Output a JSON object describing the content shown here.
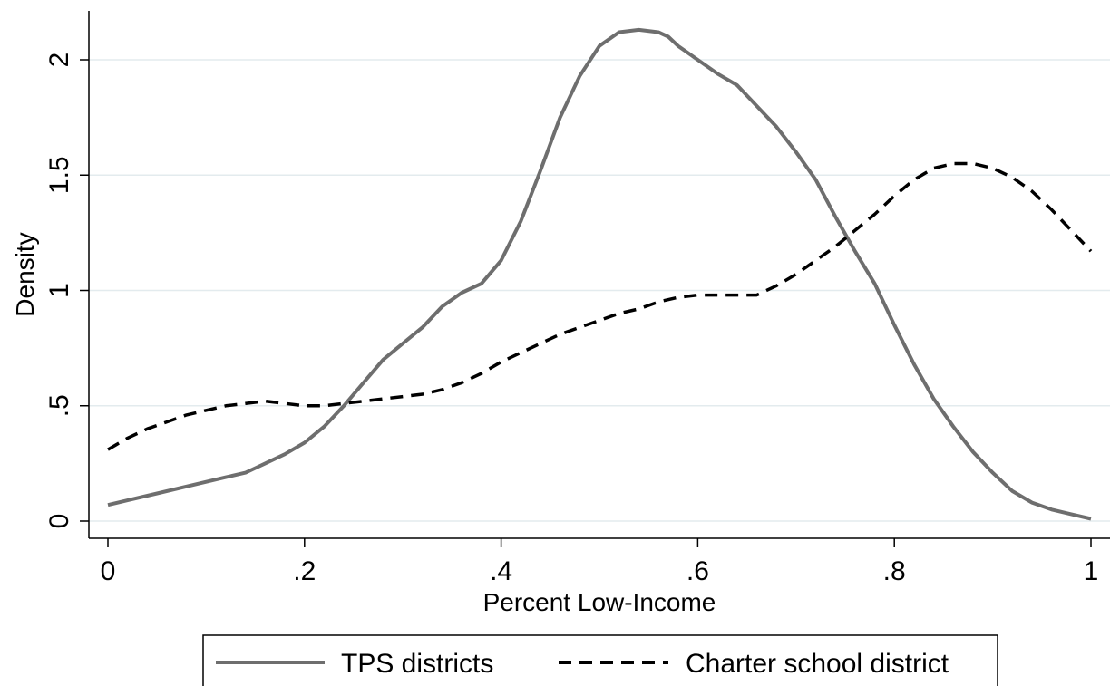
{
  "chart_data": {
    "type": "line",
    "xlabel": "Percent Low-Income",
    "ylabel": "Density",
    "xlim": [
      0,
      1
    ],
    "ylim": [
      0,
      2.2
    ],
    "x_ticks": [
      {
        "value": 0,
        "label": "0"
      },
      {
        "value": 0.2,
        "label": ".2"
      },
      {
        "value": 0.4,
        "label": ".4"
      },
      {
        "value": 0.6,
        "label": ".6"
      },
      {
        "value": 0.8,
        "label": ".8"
      },
      {
        "value": 1,
        "label": "1"
      }
    ],
    "y_ticks": [
      {
        "value": 0,
        "label": "0"
      },
      {
        "value": 0.5,
        "label": ".5"
      },
      {
        "value": 1,
        "label": "1"
      },
      {
        "value": 1.5,
        "label": "1.5"
      },
      {
        "value": 2,
        "label": "2"
      }
    ],
    "grid": "horizontal",
    "legend_position": "bottom",
    "series": [
      {
        "name": "TPS districts",
        "color": "#6e6e6e",
        "style": "solid",
        "x": [
          0,
          0.02,
          0.05,
          0.08,
          0.1,
          0.12,
          0.14,
          0.15,
          0.16,
          0.18,
          0.2,
          0.22,
          0.24,
          0.26,
          0.28,
          0.3,
          0.32,
          0.34,
          0.36,
          0.38,
          0.4,
          0.42,
          0.44,
          0.46,
          0.48,
          0.5,
          0.52,
          0.54,
          0.56,
          0.57,
          0.58,
          0.6,
          0.62,
          0.64,
          0.66,
          0.68,
          0.7,
          0.72,
          0.74,
          0.76,
          0.78,
          0.8,
          0.82,
          0.84,
          0.86,
          0.88,
          0.9,
          0.92,
          0.94,
          0.96,
          0.98,
          1.0
        ],
        "y": [
          0.07,
          0.09,
          0.12,
          0.15,
          0.17,
          0.19,
          0.21,
          0.23,
          0.25,
          0.29,
          0.34,
          0.41,
          0.5,
          0.6,
          0.7,
          0.77,
          0.84,
          0.93,
          0.99,
          1.03,
          1.13,
          1.3,
          1.52,
          1.75,
          1.93,
          2.06,
          2.12,
          2.13,
          2.12,
          2.1,
          2.06,
          2.0,
          1.94,
          1.89,
          1.8,
          1.71,
          1.6,
          1.48,
          1.32,
          1.17,
          1.03,
          0.85,
          0.68,
          0.53,
          0.41,
          0.3,
          0.21,
          0.13,
          0.08,
          0.05,
          0.03,
          0.01
        ]
      },
      {
        "name": "Charter school district",
        "color": "#000000",
        "style": "dashed",
        "x": [
          0,
          0.02,
          0.04,
          0.06,
          0.08,
          0.1,
          0.12,
          0.14,
          0.16,
          0.18,
          0.2,
          0.22,
          0.24,
          0.26,
          0.28,
          0.3,
          0.32,
          0.34,
          0.36,
          0.38,
          0.4,
          0.42,
          0.44,
          0.46,
          0.48,
          0.5,
          0.52,
          0.54,
          0.56,
          0.58,
          0.6,
          0.62,
          0.64,
          0.66,
          0.68,
          0.7,
          0.72,
          0.74,
          0.76,
          0.78,
          0.8,
          0.82,
          0.84,
          0.86,
          0.88,
          0.9,
          0.92,
          0.94,
          0.96,
          0.98,
          1.0
        ],
        "y": [
          0.31,
          0.36,
          0.4,
          0.43,
          0.46,
          0.48,
          0.5,
          0.51,
          0.52,
          0.51,
          0.5,
          0.5,
          0.51,
          0.52,
          0.53,
          0.54,
          0.55,
          0.57,
          0.6,
          0.64,
          0.69,
          0.73,
          0.77,
          0.81,
          0.84,
          0.87,
          0.9,
          0.92,
          0.95,
          0.97,
          0.98,
          0.98,
          0.98,
          0.98,
          1.02,
          1.07,
          1.13,
          1.19,
          1.26,
          1.33,
          1.41,
          1.48,
          1.53,
          1.55,
          1.55,
          1.53,
          1.49,
          1.43,
          1.35,
          1.26,
          1.17
        ]
      }
    ]
  }
}
